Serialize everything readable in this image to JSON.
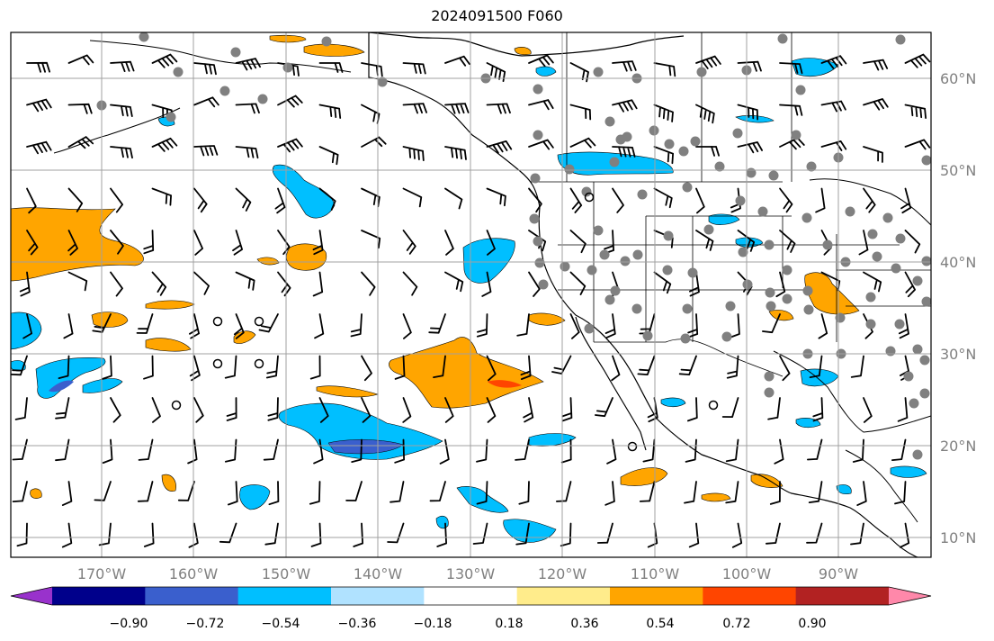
{
  "title": "2024091500 F060",
  "map": {
    "lon_labels": [
      "170°W",
      "160°W",
      "150°W",
      "140°W",
      "130°W",
      "120°W",
      "110°W",
      "100°W",
      "90°W"
    ],
    "lat_labels": [
      "60°N",
      "50°N",
      "40°N",
      "30°N",
      "20°N",
      "10°N"
    ],
    "grid_color": "#a0a0a0"
  },
  "colorbar": {
    "colors": [
      "#9932cc",
      "#00008b",
      "#3a5fcd",
      "#00bfff",
      "#b0e2ff",
      "#ffffff",
      "#ffec8b",
      "#ffa500",
      "#ff4500",
      "#b22222",
      "#ff88aa"
    ],
    "tick_labels": [
      "−0.90",
      "−0.72",
      "−0.54",
      "−0.36",
      "−0.18",
      "0.18",
      "0.36",
      "0.54",
      "0.72",
      "0.90"
    ]
  },
  "colors": {
    "negative_fill": "#00bfff",
    "negative_strong": "#3a5fcd",
    "positive_fill": "#ffa500",
    "positive_strong": "#ff4500",
    "station": "#808080"
  }
}
